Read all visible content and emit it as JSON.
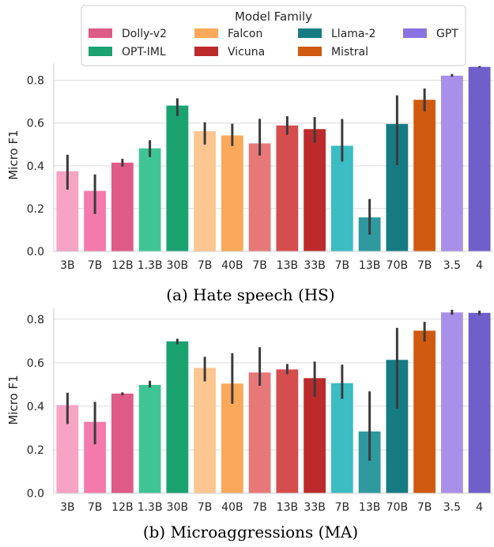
{
  "chart_data": [
    {
      "type": "bar",
      "caption": "(a) Hate speech (HS)",
      "ylabel": "Micro F1",
      "ylim": [
        0,
        0.88
      ],
      "yticks": [
        "0.0",
        "0.2",
        "0.4",
        "0.6",
        "0.8"
      ],
      "categories": [
        "3B",
        "7B",
        "12B",
        "1.3B",
        "30B",
        "7B",
        "40B",
        "7B",
        "13B",
        "33B",
        "7B",
        "13B",
        "70B",
        "7B",
        "3.5",
        "4"
      ],
      "families": [
        "Dolly-v2",
        "Dolly-v2",
        "Dolly-v2",
        "OPT-IML",
        "OPT-IML",
        "Falcon",
        "Falcon",
        "Vicuna",
        "Vicuna",
        "Vicuna",
        "Llama-2",
        "Llama-2",
        "Llama-2",
        "Mistral",
        "GPT",
        "GPT"
      ],
      "values": [
        0.375,
        0.283,
        0.415,
        0.482,
        0.682,
        0.562,
        0.542,
        0.505,
        0.589,
        0.572,
        0.494,
        0.159,
        0.596,
        0.709,
        0.822,
        0.863
      ],
      "error_low": [
        0.289,
        0.175,
        0.397,
        0.441,
        0.633,
        0.5,
        0.493,
        0.448,
        0.545,
        0.508,
        0.42,
        0.078,
        0.403,
        0.654,
        0.817,
        0.86
      ],
      "error_high": [
        0.452,
        0.36,
        0.433,
        0.52,
        0.716,
        0.604,
        0.597,
        0.62,
        0.632,
        0.628,
        0.619,
        0.245,
        0.73,
        0.762,
        0.83,
        0.867
      ],
      "colors": [
        "#f6a3c4",
        "#f47aab",
        "#de5a87",
        "#3fc595",
        "#1aa271",
        "#fbc690",
        "#f9a959",
        "#e87878",
        "#d64d4d",
        "#bc2a2b",
        "#3cbcc3",
        "#2e9a9f",
        "#177b84",
        "#d05a10",
        "#a890ea",
        "#6e5fca"
      ]
    },
    {
      "type": "bar",
      "caption": "(b) Microaggressions (MA)",
      "ylabel": "Micro F1",
      "ylim": [
        0,
        0.85
      ],
      "yticks": [
        "0.0",
        "0.2",
        "0.4",
        "0.6",
        "0.8"
      ],
      "categories": [
        "3B",
        "7B",
        "12B",
        "1.3B",
        "30B",
        "7B",
        "40B",
        "7B",
        "13B",
        "33B",
        "7B",
        "13B",
        "70B",
        "7B",
        "3.5",
        "4"
      ],
      "families": [
        "Dolly-v2",
        "Dolly-v2",
        "Dolly-v2",
        "OPT-IML",
        "OPT-IML",
        "Falcon",
        "Falcon",
        "Vicuna",
        "Vicuna",
        "Vicuna",
        "Llama-2",
        "Llama-2",
        "Llama-2",
        "Mistral",
        "GPT",
        "GPT"
      ],
      "values": [
        0.405,
        0.328,
        0.458,
        0.498,
        0.698,
        0.576,
        0.504,
        0.555,
        0.569,
        0.529,
        0.506,
        0.284,
        0.613,
        0.747,
        0.831,
        0.829
      ],
      "error_low": [
        0.318,
        0.225,
        0.45,
        0.486,
        0.685,
        0.514,
        0.411,
        0.494,
        0.547,
        0.443,
        0.434,
        0.15,
        0.389,
        0.697,
        0.82,
        0.819
      ],
      "error_high": [
        0.462,
        0.42,
        0.464,
        0.517,
        0.71,
        0.627,
        0.644,
        0.671,
        0.594,
        0.605,
        0.591,
        0.468,
        0.76,
        0.788,
        0.843,
        0.839
      ],
      "colors": [
        "#f6a3c4",
        "#f47aab",
        "#de5a87",
        "#3fc595",
        "#1aa271",
        "#fbc690",
        "#f9a959",
        "#e87878",
        "#d64d4d",
        "#bc2a2b",
        "#3cbcc3",
        "#2e9a9f",
        "#177b84",
        "#d05a10",
        "#a890ea",
        "#6e5fca"
      ]
    }
  ],
  "legend": {
    "title": "Model Family",
    "position": "top-center",
    "entries": [
      {
        "label": "Dolly-v2",
        "color": "#de5a87"
      },
      {
        "label": "Falcon",
        "color": "#f9a959"
      },
      {
        "label": "Llama-2",
        "color": "#177b84"
      },
      {
        "label": "GPT",
        "color": "#8a72e2"
      },
      {
        "label": "OPT-IML",
        "color": "#1aa271"
      },
      {
        "label": "Vicuna",
        "color": "#bc2a2b"
      },
      {
        "label": "Mistral",
        "color": "#d05a10"
      }
    ]
  }
}
